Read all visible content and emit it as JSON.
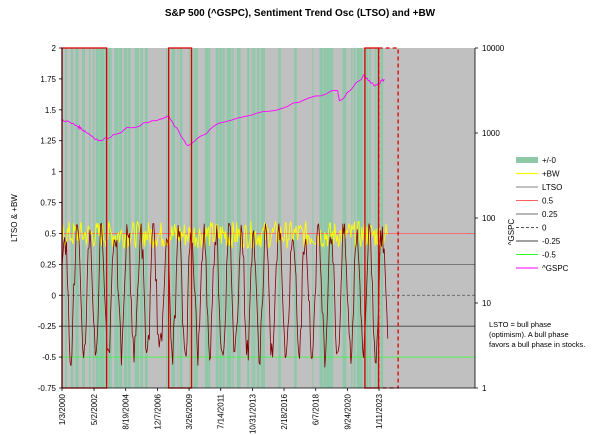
{
  "chart_data": {
    "type": "line",
    "title": "S&P 500 (^GSPC), Sentiment Trend Osc (LTSO) and +BW",
    "ylabel": "LTSO & +BW",
    "y2label": "^GSPC",
    "ylim": [
      -0.75,
      2
    ],
    "y2lim": [
      1,
      10000
    ],
    "y2scale": "log",
    "xlim": [
      "1/3/2000",
      "12/31/2029"
    ],
    "yticks": [
      "-0.75",
      "-0.5",
      "-0.25",
      "0",
      "0.25",
      "0.5",
      "0.75",
      "1",
      "1.25",
      "1.5",
      "1.75",
      "2"
    ],
    "y2ticks": [
      "1",
      "10",
      "100",
      "1000",
      "10000"
    ],
    "xticks": [
      "1/3/2000",
      "5/2/2002",
      "8/19/2004",
      "12/7/2006",
      "3/26/2009",
      "7/14/2011",
      "10/31/2013",
      "2/18/2016",
      "6/7/2018",
      "9/24/2020",
      "1/11/2023"
    ],
    "grid": false,
    "legend_position": "right",
    "colors": {
      "plot_bg": "#c0c0c0",
      "band": "#8fc7a9",
      "bw": "#ffff00",
      "ltso": "#800000",
      "gspc": "#ff00ff",
      "line_05": "#ff6060",
      "line_neg05": "#33ff33",
      "box": "#dd0000"
    },
    "legend": [
      "+/-0",
      "+BW",
      "LTSO",
      "0.5",
      "0.25",
      "0",
      "-0.25",
      "-0.5",
      "^GSPC"
    ],
    "reference_lines": [
      {
        "name": "0.5",
        "y": 0.5
      },
      {
        "name": "0.25",
        "y": 0.25
      },
      {
        "name": "0",
        "y": 0
      },
      {
        "name": "-0.25",
        "y": -0.25
      },
      {
        "name": "-0.5",
        "y": -0.5
      }
    ],
    "gspc_series": {
      "name": "^GSPC",
      "x": [
        "1/3/2000",
        "3/1/2001",
        "9/1/2001",
        "10/1/2002",
        "10/1/2004",
        "10/1/2007",
        "3/1/2009",
        "6/1/2011",
        "1/1/2016",
        "1/1/2020",
        "3/1/2020",
        "12/1/2021",
        "10/1/2022",
        "6/1/2023"
      ],
      "values": [
        1450,
        1200,
        1050,
        800,
        1130,
        1550,
        700,
        1300,
        2000,
        3250,
        2350,
        4700,
        3600,
        4300
      ]
    },
    "highlight_boxes": [
      {
        "start": "1/3/2000",
        "end": "4/1/2003",
        "style": "solid"
      },
      {
        "start": "10/1/2007",
        "end": "6/1/2009",
        "style": "solid"
      },
      {
        "start": "1/1/2022",
        "end": "12/31/2022",
        "style": "solid"
      },
      {
        "start": "1/1/2023",
        "end": "6/1/2024",
        "style": "dashed"
      }
    ],
    "annotation": [
      "LSTO = bull phase",
      "(optimism).  A bull phase",
      "favors a bull phase in stocks."
    ]
  }
}
